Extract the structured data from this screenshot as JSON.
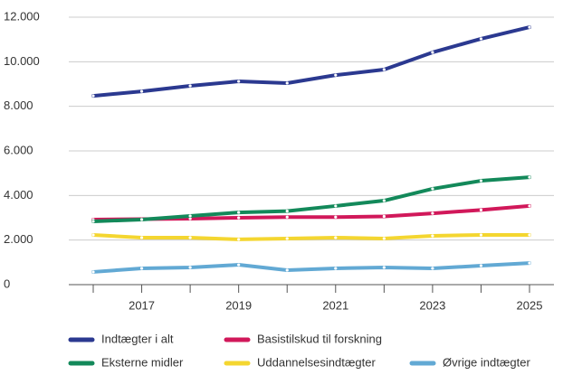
{
  "chart_data": {
    "type": "line",
    "categories": [
      null,
      "2017",
      null,
      "2019",
      null,
      "2021",
      null,
      "2023",
      null,
      "2025"
    ],
    "series": [
      {
        "name": "Indtægter i alt",
        "color": "#2b3990",
        "values": [
          8470,
          8670,
          8920,
          9120,
          9040,
          9400,
          9650,
          10420,
          11030,
          11550
        ]
      },
      {
        "name": "Basistilskud til forskning",
        "color": "#d1185a",
        "values": [
          2920,
          2940,
          2960,
          3000,
          3030,
          3030,
          3060,
          3200,
          3350,
          3530
        ]
      },
      {
        "name": "Eksterne midler",
        "color": "#13895a",
        "values": [
          2840,
          2920,
          3080,
          3240,
          3300,
          3530,
          3770,
          4300,
          4660,
          4820
        ]
      },
      {
        "name": "Uddannelsesindtægter",
        "color": "#f4d630",
        "values": [
          2230,
          2110,
          2110,
          2030,
          2070,
          2110,
          2070,
          2190,
          2230,
          2230
        ]
      },
      {
        "name": "Øvrige indtægter",
        "color": "#62a9d4",
        "values": [
          570,
          730,
          770,
          890,
          650,
          730,
          770,
          730,
          850,
          970
        ]
      }
    ],
    "ylim": [
      0,
      12000
    ],
    "yticks": [
      0,
      {
        "value": 2000,
        "label": "2.000"
      },
      {
        "value": 4000,
        "label": "4.000"
      },
      {
        "value": 6000,
        "label": "6.000"
      },
      {
        "value": 8000,
        "label": "8.000"
      },
      {
        "value": 10000,
        "label": "10.000"
      },
      {
        "value": 12000,
        "label": "12.000"
      }
    ],
    "grid": true,
    "legend": "bottom"
  }
}
